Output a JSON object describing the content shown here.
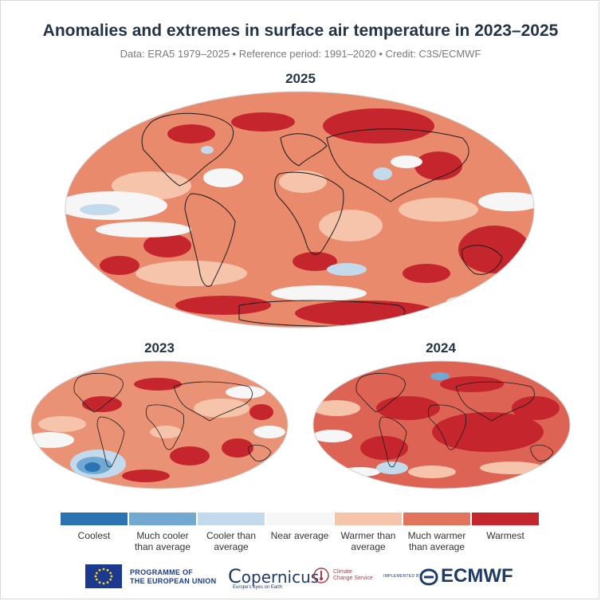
{
  "header": {
    "title": "Anomalies and extremes in surface air temperature in 2023–2025",
    "subtitle": "Data: ERA5 1979–2025 • Reference period: 1991–2020 • Credit: C3S/ECMWF"
  },
  "maps": [
    {
      "id": "2025",
      "label": "2025",
      "base": "#e98a6c"
    },
    {
      "id": "2023",
      "label": "2023",
      "base": "#ea9275"
    },
    {
      "id": "2024",
      "label": "2024",
      "base": "#dd6454"
    }
  ],
  "legend": {
    "items": [
      {
        "label": "Coolest",
        "color": "#2c73b4"
      },
      {
        "label": "Much cooler than average",
        "color": "#72a9d3"
      },
      {
        "label": "Cooler than average",
        "color": "#c3daec"
      },
      {
        "label": "Near average",
        "color": "#f6f6f6"
      },
      {
        "label": "Warmer than average",
        "color": "#f6c3ab"
      },
      {
        "label": "Much warmer than average",
        "color": "#e2735d"
      },
      {
        "label": "Warmest",
        "color": "#c5262e"
      }
    ]
  },
  "footer": {
    "eu_line1": "PROGRAMME OF",
    "eu_line2": "THE EUROPEAN UNION",
    "copernicus": "opernicus",
    "copernicus_tag": "Europe's eyes on Earth",
    "c3s_line1": "Climate",
    "c3s_line2": "Change Service",
    "implemented_by": "IMPLEMENTED BY",
    "ecmwf": "ECMWF"
  }
}
